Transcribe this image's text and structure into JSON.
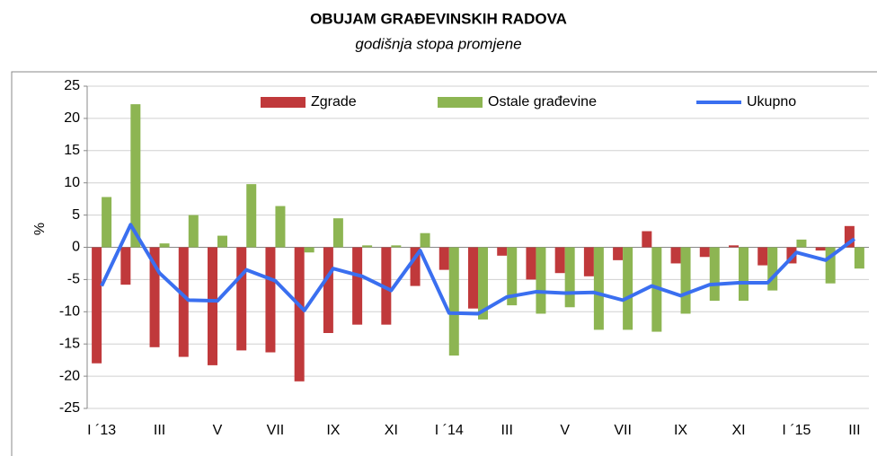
{
  "chart_data": {
    "type": "bar",
    "title": "OBUJAM GRAĐEVINSKIH RADOVA",
    "subtitle": "godišnja stopa promjene",
    "y_label": "%",
    "categories": [
      "I ´13",
      null,
      "III",
      null,
      "V",
      null,
      "VII",
      null,
      "IX",
      null,
      "XI",
      null,
      "I ´14",
      null,
      "III",
      null,
      "V",
      null,
      "VII",
      null,
      "IX",
      null,
      "XI",
      null,
      "I ´15",
      null,
      "III"
    ],
    "series": [
      {
        "name": "Zgrade",
        "color": "#c0393b",
        "type": "bar",
        "values": [
          -18,
          -5.8,
          -15.5,
          -17,
          -18.3,
          -16,
          -16.3,
          -20.8,
          -13.3,
          -12,
          -12,
          -6,
          -3.5,
          -9.5,
          -1.3,
          -5,
          -4,
          -4.5,
          -2,
          2.5,
          -2.5,
          -1.5,
          0.3,
          -2.8,
          -2.5,
          -0.5,
          3.3
        ]
      },
      {
        "name": "Ostale građevine",
        "color": "#8db552",
        "type": "bar",
        "values": [
          7.8,
          22.2,
          0.6,
          5,
          1.8,
          9.8,
          6.4,
          -0.8,
          4.5,
          0.3,
          0.3,
          2.2,
          -16.8,
          -11.2,
          -9,
          -10.3,
          -9.3,
          -12.8,
          -12.8,
          -13.1,
          -10.3,
          -8.3,
          -8.3,
          -6.7,
          1.2,
          -5.6,
          -3.3
        ]
      },
      {
        "name": "Ukupno",
        "color": "#3a6ff0",
        "type": "line",
        "values": [
          -6,
          3.5,
          -4,
          -8.2,
          -8.3,
          -3.5,
          -5.2,
          -9.8,
          -3.3,
          -4.5,
          -6.7,
          -0.5,
          -10.2,
          -10.3,
          -7.7,
          -6.9,
          -7.1,
          -7,
          -8.2,
          -6,
          -7.5,
          -5.8,
          -5.5,
          -5.5,
          -0.8,
          -2,
          1.3
        ]
      }
    ],
    "ylim": [
      -25,
      25
    ],
    "yticks": [
      -25,
      -20,
      -15,
      -10,
      -5,
      0,
      5,
      10,
      15,
      20,
      25
    ],
    "grid": true
  }
}
